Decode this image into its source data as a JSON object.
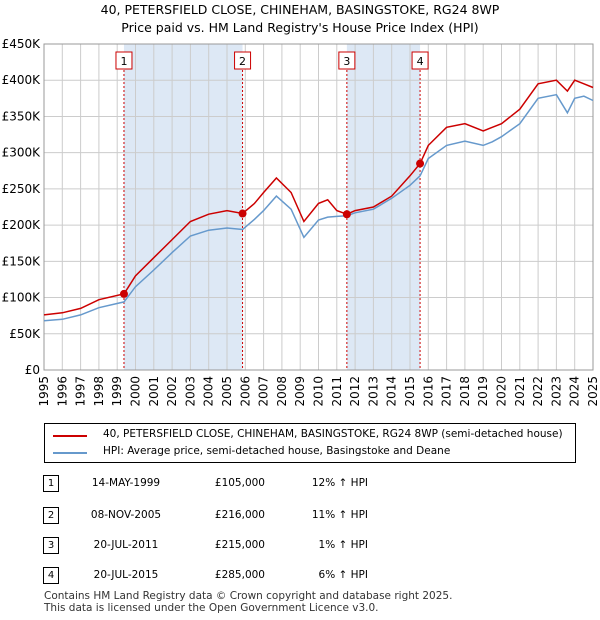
{
  "title_line1": "40, PETERSFIELD CLOSE, CHINEHAM, BASINGSTOKE, RG24 8WP",
  "title_line2": "Price paid vs. HM Land Registry's House Price Index (HPI)",
  "colors": {
    "property": "#cc0000",
    "hpi": "#6699cc",
    "shade": "#dde8f5",
    "grid": "#cccccc"
  },
  "chart_data": {
    "type": "line",
    "title": "Price paid vs. HM Land Registry's House Price Index (HPI)",
    "xlabel": "",
    "ylabel": "",
    "xlim": [
      1995,
      2025
    ],
    "ylim": [
      0,
      450000
    ],
    "x_ticks": [
      "1995",
      "1996",
      "1997",
      "1998",
      "1999",
      "2000",
      "2001",
      "2002",
      "2003",
      "2004",
      "2005",
      "2006",
      "2007",
      "2008",
      "2009",
      "2010",
      "2011",
      "2012",
      "2013",
      "2014",
      "2015",
      "2016",
      "2017",
      "2018",
      "2019",
      "2020",
      "2021",
      "2022",
      "2023",
      "2024",
      "2025"
    ],
    "y_ticks": [
      {
        "value": 0,
        "label": "£0"
      },
      {
        "value": 50000,
        "label": "£50K"
      },
      {
        "value": 100000,
        "label": "£100K"
      },
      {
        "value": 150000,
        "label": "£150K"
      },
      {
        "value": 200000,
        "label": "£200K"
      },
      {
        "value": 250000,
        "label": "£250K"
      },
      {
        "value": 300000,
        "label": "£300K"
      },
      {
        "value": 350000,
        "label": "£350K"
      },
      {
        "value": 400000,
        "label": "£400K"
      },
      {
        "value": 450000,
        "label": "£450K"
      }
    ],
    "shaded_periods": [
      [
        1999.37,
        2005.85
      ],
      [
        2011.55,
        2015.55
      ]
    ],
    "series": [
      {
        "name": "40, PETERSFIELD CLOSE, CHINEHAM, BASINGSTOKE, RG24 8WP (semi-detached house)",
        "color": "#cc0000",
        "x": [
          1995,
          1996,
          1997,
          1998,
          1999.37,
          2000,
          2001,
          2002,
          2003,
          2004,
          2005,
          2005.85,
          2006.5,
          2007,
          2007.7,
          2008.5,
          2009.2,
          2010,
          2010.5,
          2011,
          2011.55,
          2012,
          2013,
          2014,
          2015,
          2015.55,
          2016,
          2017,
          2018,
          2019,
          2019.5,
          2020,
          2021,
          2022,
          2023,
          2023.6,
          2024,
          2024.5,
          2025
        ],
        "y": [
          76000,
          79000,
          85000,
          97000,
          105000,
          130000,
          155000,
          180000,
          205000,
          215000,
          220000,
          216000,
          230000,
          245000,
          265000,
          245000,
          205000,
          230000,
          235000,
          220000,
          215000,
          220000,
          225000,
          240000,
          268000,
          285000,
          310000,
          335000,
          340000,
          330000,
          335000,
          340000,
          360000,
          395000,
          400000,
          385000,
          400000,
          395000,
          390000
        ]
      },
      {
        "name": "HPI: Average price, semi-detached house, Basingstoke and Deane",
        "color": "#6699cc",
        "x": [
          1995,
          1996,
          1997,
          1998,
          1999.37,
          2000,
          2001,
          2002,
          2003,
          2004,
          2005,
          2005.85,
          2006.5,
          2007,
          2007.7,
          2008.5,
          2009.2,
          2010,
          2010.5,
          2011,
          2011.55,
          2012,
          2013,
          2014,
          2015,
          2015.55,
          2016,
          2017,
          2018,
          2019,
          2019.5,
          2020,
          2021,
          2022,
          2023,
          2023.6,
          2024,
          2024.5,
          2025
        ],
        "y": [
          68000,
          70000,
          76000,
          86000,
          94000,
          115000,
          138000,
          162000,
          185000,
          193000,
          196000,
          194000,
          208000,
          220000,
          240000,
          222000,
          183000,
          207000,
          211000,
          212000,
          213000,
          217000,
          222000,
          237000,
          255000,
          268000,
          292000,
          310000,
          316000,
          310000,
          315000,
          322000,
          340000,
          375000,
          380000,
          355000,
          375000,
          378000,
          372000
        ]
      }
    ],
    "sales": [
      {
        "id": "1",
        "x": 1999.37,
        "y": 105000
      },
      {
        "id": "2",
        "x": 2005.85,
        "y": 216000
      },
      {
        "id": "3",
        "x": 2011.55,
        "y": 215000
      },
      {
        "id": "4",
        "x": 2015.55,
        "y": 285000
      }
    ],
    "legend_position": "bottom"
  },
  "legend": {
    "property": "40, PETERSFIELD CLOSE, CHINEHAM, BASINGSTOKE, RG24 8WP (semi-detached house)",
    "hpi": "HPI: Average price, semi-detached house, Basingstoke and Deane"
  },
  "transactions": [
    {
      "id": "1",
      "date": "14-MAY-1999",
      "price": "£105,000",
      "hpi": "12% ↑ HPI"
    },
    {
      "id": "2",
      "date": "08-NOV-2005",
      "price": "£216,000",
      "hpi": "11% ↑ HPI"
    },
    {
      "id": "3",
      "date": "20-JUL-2011",
      "price": "£215,000",
      "hpi": "1% ↑ HPI"
    },
    {
      "id": "4",
      "date": "20-JUL-2015",
      "price": "£285,000",
      "hpi": "6% ↑ HPI"
    }
  ],
  "footer_line1": "Contains HM Land Registry data © Crown copyright and database right 2025.",
  "footer_line2": "This data is licensed under the Open Government Licence v3.0."
}
